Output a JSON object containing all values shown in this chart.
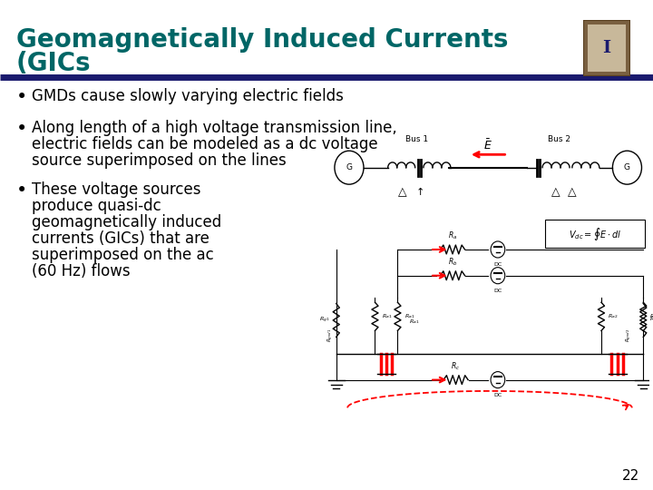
{
  "title_line1": "Geomagnetically Induced Currents",
  "title_line2": "(GICs",
  "title_color": "#006666",
  "title_fontsize": 20,
  "separator_color": "#1a1a6e",
  "background_color": "#ffffff",
  "bullet1": "GMDs cause slowly varying electric fields",
  "bullet2_l1": "Along length of a high voltage transmission line,",
  "bullet2_l2": "electric fields can be modeled as a dc voltage",
  "bullet2_l3": "source superimposed on the lines",
  "bullet3_l1": "These voltage sources",
  "bullet3_l2": "produce quasi-dc",
  "bullet3_l3": "geomagnetically induced",
  "bullet3_l4": "currents (GICs) that are",
  "bullet3_l5": "superimposed on the ac",
  "bullet3_l6": "(60 Hz) flows",
  "bullet_fontsize": 12,
  "bullet_color": "#000000",
  "page_number": "22",
  "page_color": "#000000",
  "page_fontsize": 11
}
